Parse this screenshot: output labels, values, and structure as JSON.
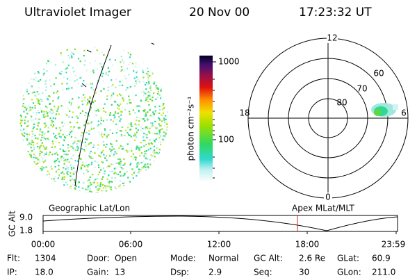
{
  "header": {
    "instrument": "Ultraviolet Imager",
    "date": "20 Nov 00",
    "time": "17:23:32 UT"
  },
  "colorbar": {
    "label": "photon cm⁻²s⁻¹",
    "tick_labels": [
      "1000",
      "100"
    ]
  },
  "polar_plot": {
    "mlt_labels": {
      "top": "12",
      "left": "18",
      "right": "6",
      "bottom": "0"
    },
    "lat_labels": [
      "60",
      "70",
      "80"
    ]
  },
  "orbit_panel": {
    "y_label": "GC Alt",
    "y_max": "9.0",
    "y_min": "1.8",
    "left_title": "Geographic Lat/Lon",
    "right_title": "Apex MLat/MLT",
    "time_labels": [
      "00:00",
      "06:00",
      "12:00",
      "18:00",
      "23:59"
    ]
  },
  "footer": {
    "rows": [
      [
        [
          "Flt:",
          "1304"
        ],
        [
          "Door:",
          "Open"
        ],
        [
          "Mode:",
          "Normal"
        ],
        [
          "GC Alt:",
          "2.6 Re"
        ],
        [
          "GLat:",
          "60.9"
        ]
      ],
      [
        [
          "IP:",
          "18.0"
        ],
        [
          "Gain:",
          "13"
        ],
        [
          "Dsp:",
          "2.9"
        ],
        [
          "Seq:",
          "30"
        ],
        [
          "GLon:",
          "211.0"
        ]
      ]
    ]
  }
}
